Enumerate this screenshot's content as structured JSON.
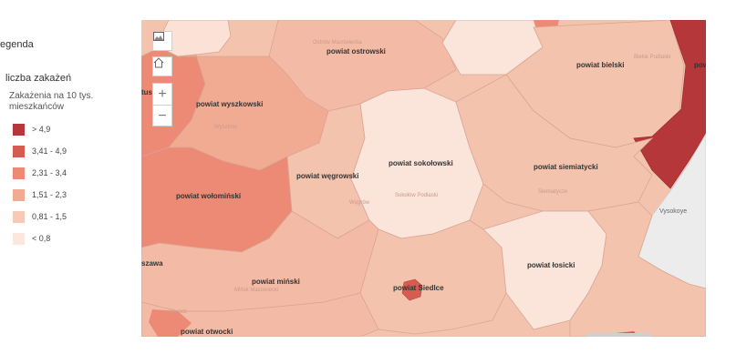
{
  "legend": {
    "title": "egenda",
    "layer": "liczba zakażeń",
    "field": "Zakażenia na 10 tys. mieszkańców",
    "classes": [
      {
        "label": "> 4,9",
        "color": "#b5373a"
      },
      {
        "label": "3,41 - 4,9",
        "color": "#d65c52"
      },
      {
        "label": "2,31 - 3,4",
        "color": "#ec8a75"
      },
      {
        "label": "1,51 - 2,3",
        "color": "#f2ab93"
      },
      {
        "label": "0,81 - 1,5",
        "color": "#f6cab6"
      },
      {
        "label": "< 0,8",
        "color": "#fbe7de"
      }
    ]
  },
  "map": {
    "controls": [
      {
        "name": "basemap-gallery-icon"
      },
      {
        "name": "home-icon"
      }
    ],
    "zoom_in": "+",
    "zoom_out": "−",
    "regions": [
      {
        "label": "powiat ostrowski"
      },
      {
        "label": "powiat bielski"
      },
      {
        "label": "powi"
      },
      {
        "label": "tus"
      },
      {
        "label": "powiat wyszkowski"
      },
      {
        "label": "powiat sokołowski"
      },
      {
        "label": "powiat węgrowski"
      },
      {
        "label": "powiat siemiatycki"
      },
      {
        "label": "powiat wołomiński"
      },
      {
        "label": "Vysokoye"
      },
      {
        "label": "powiat łosicki"
      },
      {
        "label": "szawa"
      },
      {
        "label": "powiat miński"
      },
      {
        "label": "powiat Siedlce"
      },
      {
        "label": "powiat otwocki"
      }
    ],
    "basemap_labels": [
      "Ostrów Mazowiecka",
      "Bielsk Podlaski",
      "Wyszków",
      "Węgrów",
      "Sokołów Podlaski",
      "Siemiatycze",
      "Mińsk Mazowiecki",
      "Otwock"
    ]
  }
}
